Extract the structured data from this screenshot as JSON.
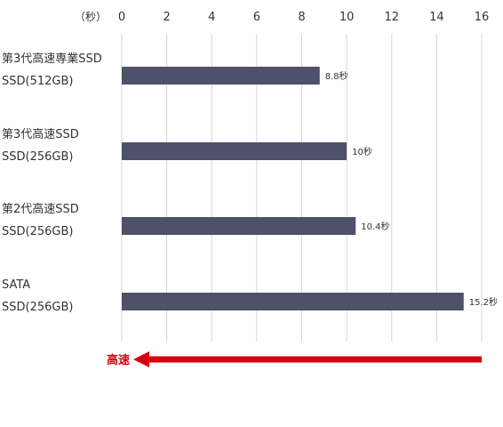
{
  "chart_data": {
    "type": "bar",
    "orientation": "horizontal",
    "unit_label": "（秒）",
    "xlim": [
      0,
      16
    ],
    "xticks": [
      0,
      2,
      4,
      6,
      8,
      10,
      12,
      14,
      16
    ],
    "grid": true,
    "categories": [
      [
        "第3代高速専業SSD",
        "SSD(512GB)"
      ],
      [
        "第3代高速SSD",
        "SSD(256GB)"
      ],
      [
        "第2代高速SSD",
        "SSD(256GB)"
      ],
      [
        "SATA",
        "SSD(256GB)"
      ]
    ],
    "values": [
      8.8,
      10,
      10.4,
      15.2
    ],
    "data_labels": [
      "8.8秒",
      "10秒",
      "10.4秒",
      "15.2秒"
    ],
    "bar_color": "#4f506a",
    "annotation": {
      "text": "高速",
      "color": "#d7000f",
      "direction": "left"
    }
  }
}
